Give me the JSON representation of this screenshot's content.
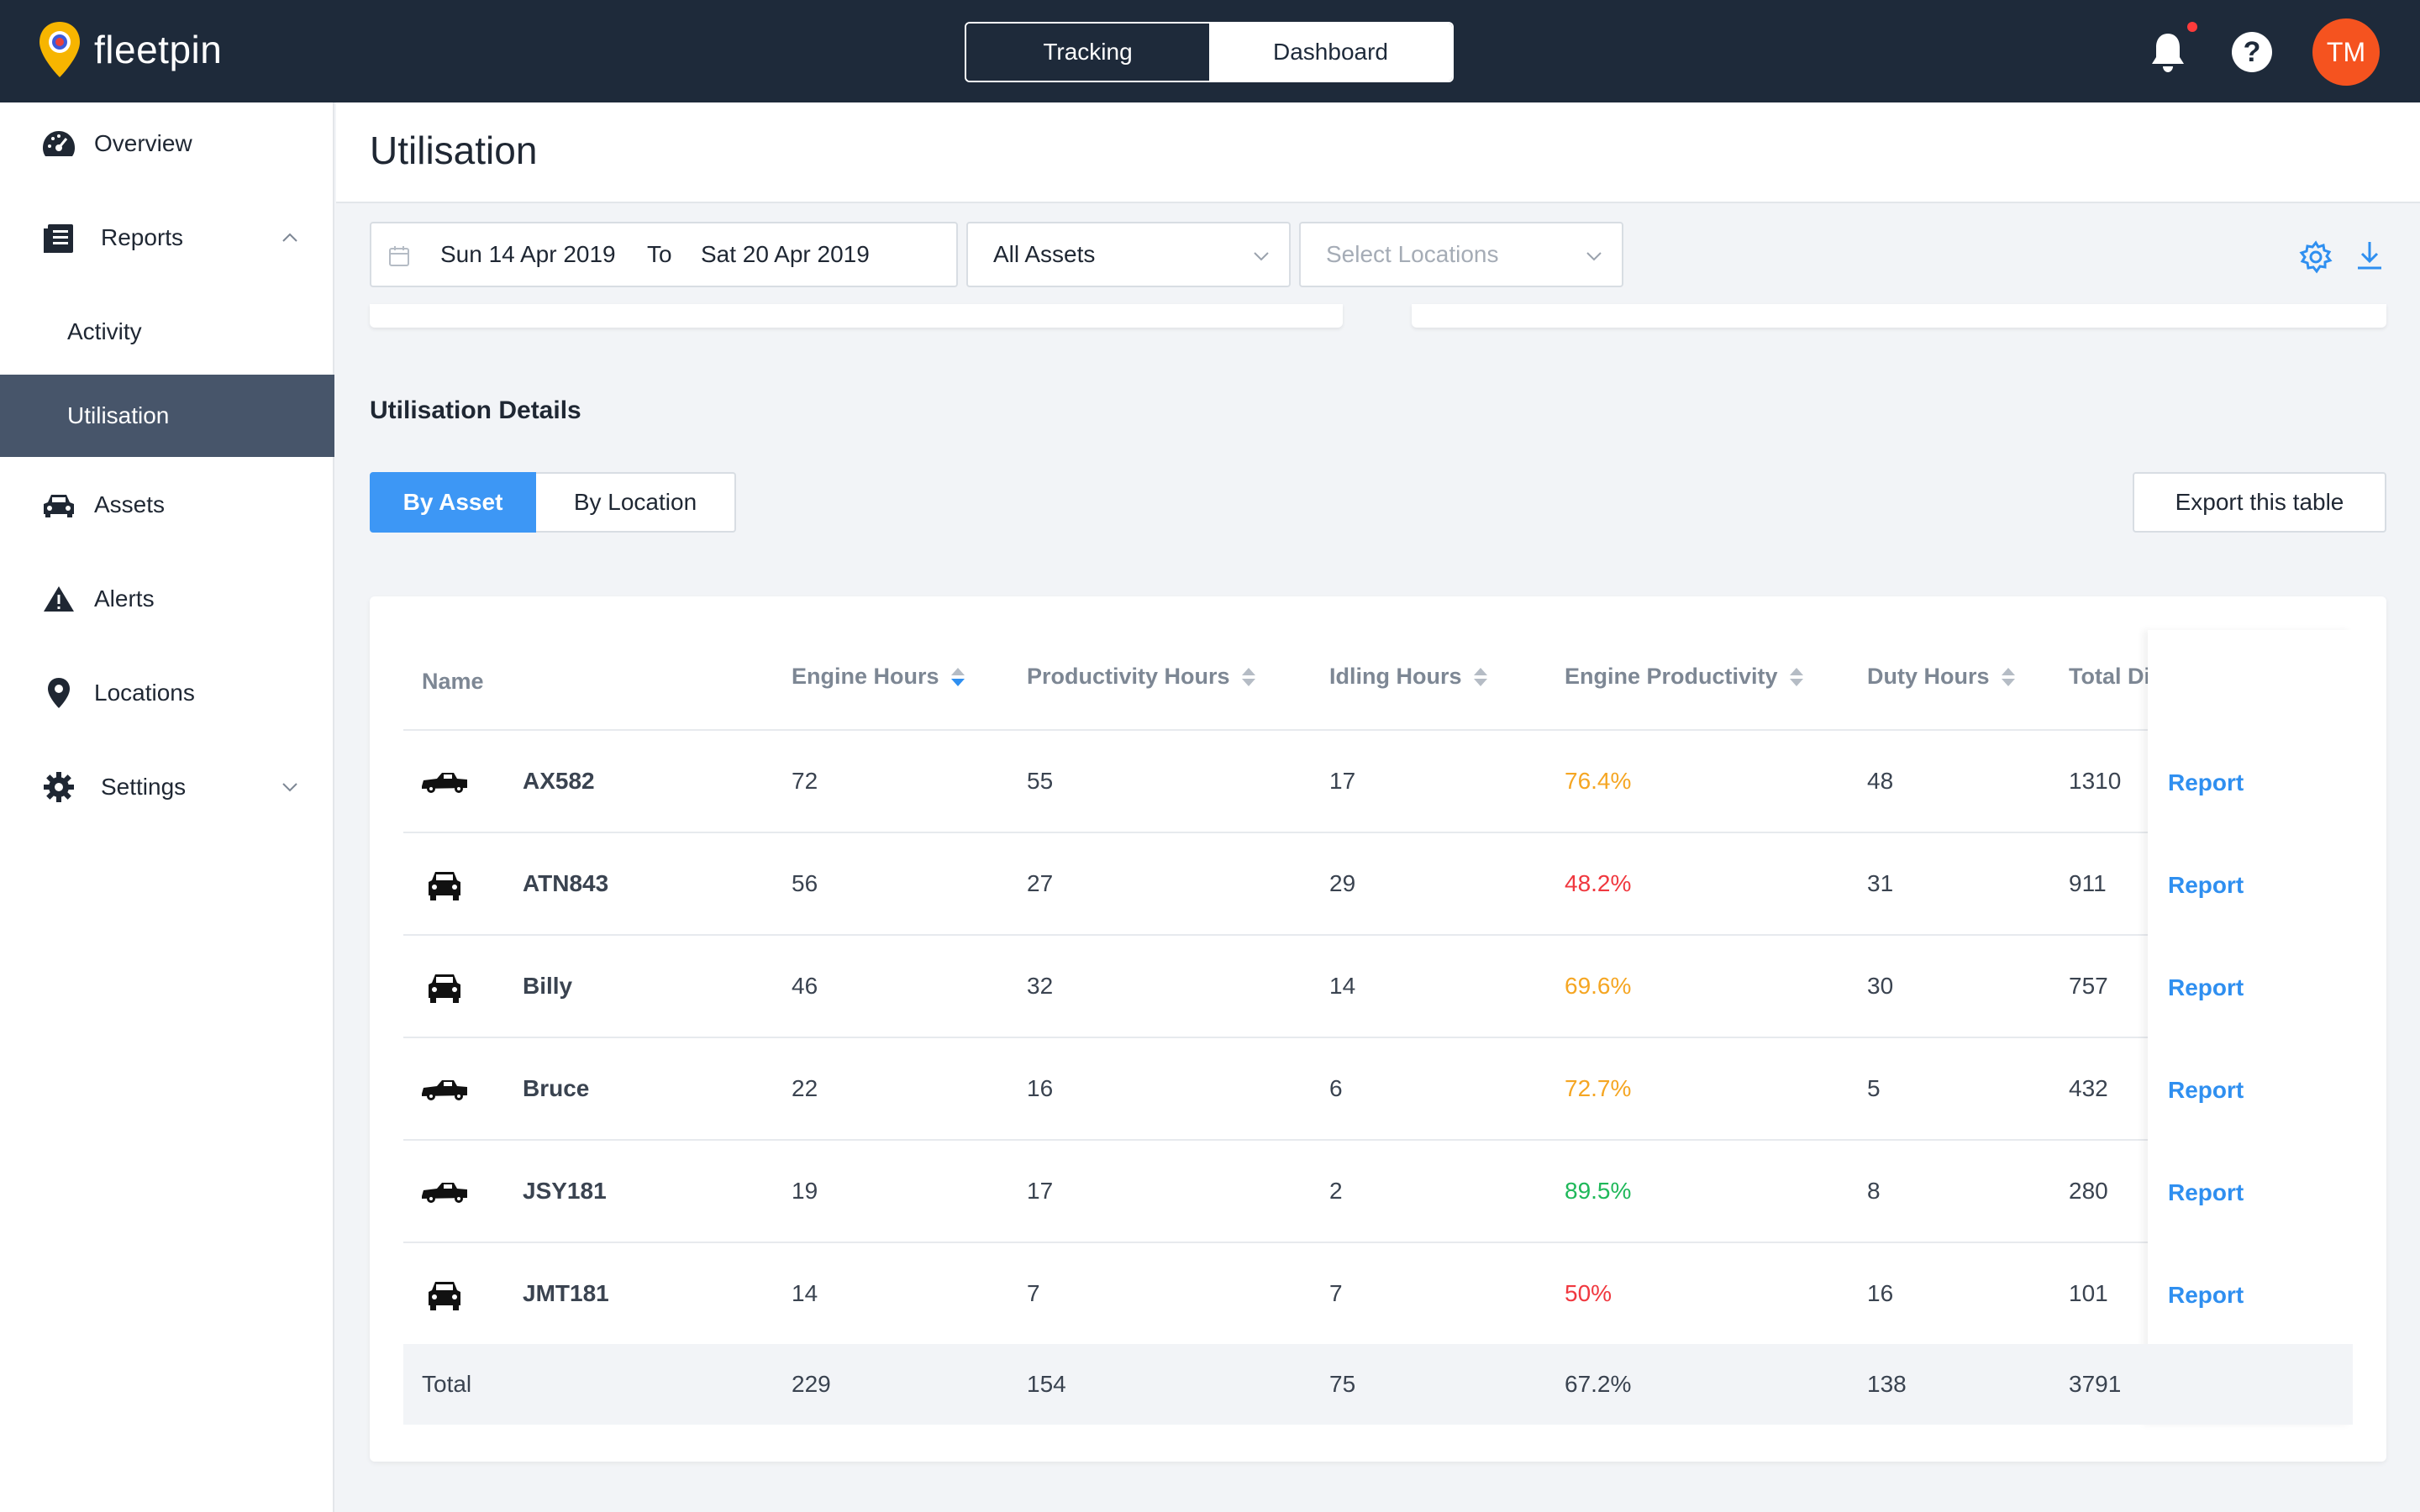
{
  "app": {
    "brand": "fleetpin",
    "modes": [
      "Tracking",
      "Dashboard"
    ],
    "user_initials": "TM",
    "accent": "#3d97f5",
    "topbar_color": "#1e2a3a",
    "avatar_color": "#f5531f"
  },
  "sidebar": {
    "items": [
      {
        "label": "Overview",
        "icon": "speedometer-icon"
      },
      {
        "label": "Reports",
        "icon": "report-list-icon",
        "expanded": true
      },
      {
        "label": "Activity",
        "sub": true
      },
      {
        "label": "Utilisation",
        "sub": true,
        "active": true
      },
      {
        "label": "Assets",
        "icon": "car-icon"
      },
      {
        "label": "Alerts",
        "icon": "warning-icon"
      },
      {
        "label": "Locations",
        "icon": "location-pin-icon"
      },
      {
        "label": "Settings",
        "icon": "gear-icon",
        "expanded": false
      }
    ]
  },
  "page": {
    "title": "Utilisation",
    "filters": {
      "date_from": "Sun 14 Apr 2019",
      "to_label": "To",
      "date_to": "Sat 20 Apr 2019",
      "assets_value": "All Assets",
      "locations_placeholder": "Select Locations"
    },
    "section_title": "Utilisation Details",
    "tabs": [
      "By Asset",
      "By Location"
    ],
    "active_tab": "By Asset",
    "export_label": "Export this table"
  },
  "table": {
    "columns": [
      "Name",
      "Engine Hours",
      "Productivity Hours",
      "Idling Hours",
      "Engine Productivity",
      "Duty Hours",
      "Total Di"
    ],
    "rows": [
      {
        "name": "AX582",
        "vehicle": "ute-icon",
        "engine": "72",
        "productivity": "55",
        "idling": "17",
        "eng_prod": "76.4%",
        "status": "#f5a623",
        "duty": "48",
        "total": "1310",
        "action": "Report"
      },
      {
        "name": "ATN843",
        "vehicle": "car-front-icon",
        "engine": "56",
        "productivity": "27",
        "idling": "29",
        "eng_prod": "48.2%",
        "status": "#f0383f",
        "duty": "31",
        "total": "911",
        "action": "Report"
      },
      {
        "name": "Billy",
        "vehicle": "car-front-icon",
        "engine": "46",
        "productivity": "32",
        "idling": "14",
        "eng_prod": "69.6%",
        "status": "#f5a623",
        "duty": "30",
        "total": "757",
        "action": "Report"
      },
      {
        "name": "Bruce",
        "vehicle": "ute-icon",
        "engine": "22",
        "productivity": "16",
        "idling": "6",
        "eng_prod": "72.7%",
        "status": "#f5a623",
        "duty": "5",
        "total": "432",
        "action": "Report"
      },
      {
        "name": "JSY181",
        "vehicle": "ute-icon",
        "engine": "19",
        "productivity": "17",
        "idling": "2",
        "eng_prod": "89.5%",
        "status": "#1fb85a",
        "duty": "8",
        "total": "280",
        "action": "Report"
      },
      {
        "name": "JMT181",
        "vehicle": "car-front-icon",
        "engine": "14",
        "productivity": "7",
        "idling": "7",
        "eng_prod": "50%",
        "status": "#f0383f",
        "duty": "16",
        "total": "101",
        "action": "Report"
      }
    ],
    "totals": {
      "label": "Total",
      "engine": "229",
      "productivity": "154",
      "idling": "75",
      "eng_prod": "67.2%",
      "duty": "138",
      "total": "3791"
    }
  }
}
